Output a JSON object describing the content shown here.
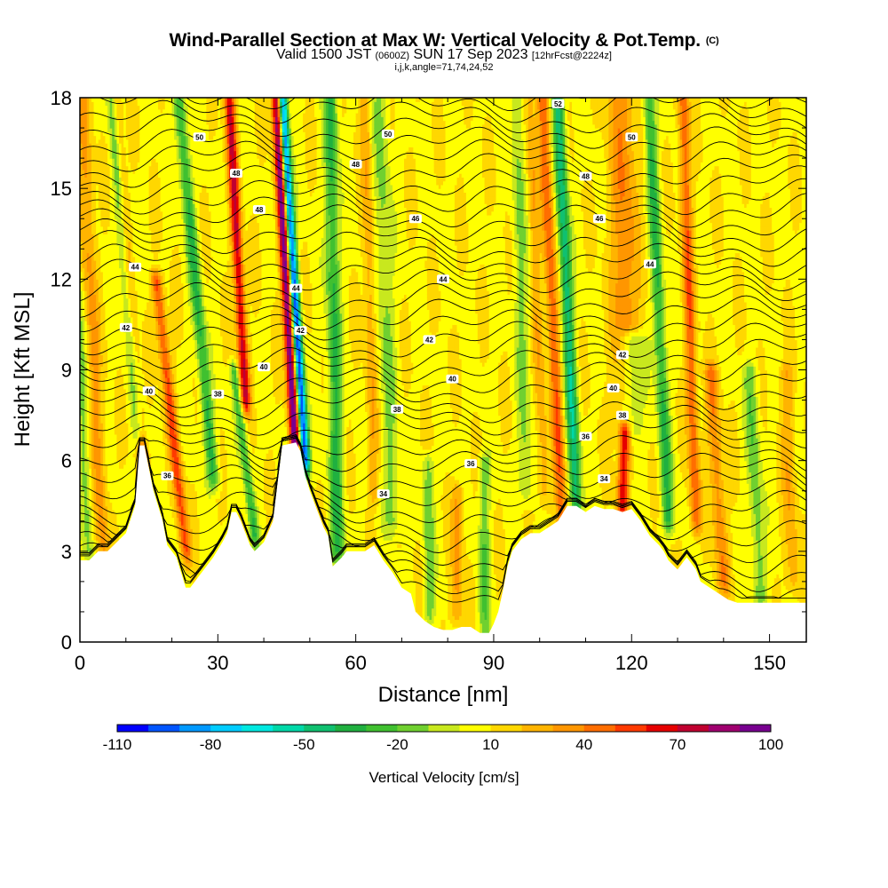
{
  "title": {
    "main": "Wind-Parallel Section at Max W: Vertical Velocity & Pot.Temp.",
    "copyright": "(C)",
    "valid_prefix": "Valid 1500 JST",
    "valid_utc": "(0600Z)",
    "valid_date": "SUN 17 Sep 2023",
    "forecast": "[12hrFcst@2224z]",
    "params": "i,j,k,angle=71,74,24,52"
  },
  "colors": {
    "background": "#ffffff",
    "terrain": "#ffffff",
    "contour": "#000000"
  },
  "chart_data": {
    "type": "heatmap",
    "xlabel": "Distance [nm]",
    "ylabel": "Height [Kft MSL]",
    "xlim": [
      0,
      158
    ],
    "ylim": [
      0,
      18
    ],
    "xticks": [
      0,
      30,
      60,
      90,
      120,
      150
    ],
    "yticks": [
      0,
      3,
      6,
      9,
      12,
      15,
      18
    ],
    "colorbar": {
      "title": "Vertical Velocity [cm/s]",
      "min": -110,
      "max": 100,
      "step": 10,
      "labels": [
        -110,
        -80,
        -50,
        -20,
        10,
        40,
        70,
        100
      ],
      "colors": [
        "#0000ff",
        "#0055ff",
        "#0099ff",
        "#00ccff",
        "#00e8e0",
        "#00d8a8",
        "#10c070",
        "#20b040",
        "#40c030",
        "#70d030",
        "#c8e81e",
        "#ffff00",
        "#ffd700",
        "#ffb400",
        "#ff9600",
        "#ff6e00",
        "#ff3a00",
        "#e60000",
        "#c00030",
        "#a00070",
        "#780090"
      ]
    },
    "terrain_profile": [
      [
        0,
        2.7
      ],
      [
        2,
        2.7
      ],
      [
        4,
        3.0
      ],
      [
        6,
        3.0
      ],
      [
        8,
        3.3
      ],
      [
        10,
        3.6
      ],
      [
        12,
        4.5
      ],
      [
        13,
        6.5
      ],
      [
        14,
        6.5
      ],
      [
        16,
        5.0
      ],
      [
        18,
        4.0
      ],
      [
        19,
        3.2
      ],
      [
        21,
        2.8
      ],
      [
        22,
        2.3
      ],
      [
        23,
        1.8
      ],
      [
        24,
        1.8
      ],
      [
        25,
        2.0
      ],
      [
        27,
        2.4
      ],
      [
        29,
        2.8
      ],
      [
        31,
        3.3
      ],
      [
        32,
        3.6
      ],
      [
        33,
        4.3
      ],
      [
        34,
        4.3
      ],
      [
        35,
        4.0
      ],
      [
        37,
        3.2
      ],
      [
        38,
        3.0
      ],
      [
        40,
        3.3
      ],
      [
        42,
        4.0
      ],
      [
        44,
        6.5
      ],
      [
        47,
        6.6
      ],
      [
        48,
        6.3
      ],
      [
        49,
        5.5
      ],
      [
        50,
        5.0
      ],
      [
        52,
        4.2
      ],
      [
        53,
        3.8
      ],
      [
        54,
        3.5
      ],
      [
        55,
        2.5
      ],
      [
        57,
        2.8
      ],
      [
        58,
        3.0
      ],
      [
        60,
        3.0
      ],
      [
        62,
        3.0
      ],
      [
        64,
        3.2
      ],
      [
        66,
        2.7
      ],
      [
        68,
        2.3
      ],
      [
        70,
        1.8
      ],
      [
        72,
        1.6
      ],
      [
        73,
        1.0
      ],
      [
        75,
        0.7
      ],
      [
        77,
        0.5
      ],
      [
        79,
        0.4
      ],
      [
        81,
        0.4
      ],
      [
        83,
        0.5
      ],
      [
        85,
        0.5
      ],
      [
        87,
        0.3
      ],
      [
        89,
        0.3
      ],
      [
        90,
        0.6
      ],
      [
        91,
        1.0
      ],
      [
        92,
        1.7
      ],
      [
        93,
        2.5
      ],
      [
        94,
        3.0
      ],
      [
        96,
        3.4
      ],
      [
        98,
        3.6
      ],
      [
        100,
        3.6
      ],
      [
        102,
        3.8
      ],
      [
        104,
        4.0
      ],
      [
        106,
        4.5
      ],
      [
        108,
        4.5
      ],
      [
        110,
        4.3
      ],
      [
        112,
        4.5
      ],
      [
        114,
        4.4
      ],
      [
        116,
        4.4
      ],
      [
        118,
        4.3
      ],
      [
        120,
        4.4
      ],
      [
        122,
        4.0
      ],
      [
        124,
        3.5
      ],
      [
        126,
        3.2
      ],
      [
        127,
        3.0
      ],
      [
        128,
        2.7
      ],
      [
        130,
        2.4
      ],
      [
        132,
        2.8
      ],
      [
        134,
        2.4
      ],
      [
        135,
        2.0
      ],
      [
        137,
        1.8
      ],
      [
        139,
        1.6
      ],
      [
        141,
        1.4
      ],
      [
        143,
        1.3
      ],
      [
        146,
        1.3
      ],
      [
        150,
        1.3
      ],
      [
        154,
        1.3
      ],
      [
        158,
        1.3
      ]
    ],
    "contour_labels": [
      {
        "x": 26,
        "y": 16.7,
        "text": "50"
      },
      {
        "x": 34,
        "y": 15.5,
        "text": "48"
      },
      {
        "x": 39,
        "y": 14.3,
        "text": "48"
      },
      {
        "x": 12,
        "y": 12.4,
        "text": "44"
      },
      {
        "x": 47,
        "y": 11.7,
        "text": "44"
      },
      {
        "x": 10,
        "y": 10.4,
        "text": "42"
      },
      {
        "x": 48,
        "y": 10.3,
        "text": "42"
      },
      {
        "x": 40,
        "y": 9.1,
        "text": "40"
      },
      {
        "x": 15,
        "y": 8.3,
        "text": "40"
      },
      {
        "x": 30,
        "y": 8.2,
        "text": "38"
      },
      {
        "x": 19,
        "y": 5.5,
        "text": "36"
      },
      {
        "x": 67,
        "y": 16.8,
        "text": "50"
      },
      {
        "x": 60,
        "y": 15.8,
        "text": "48"
      },
      {
        "x": 73,
        "y": 14.0,
        "text": "46"
      },
      {
        "x": 79,
        "y": 12.0,
        "text": "44"
      },
      {
        "x": 76,
        "y": 10.0,
        "text": "42"
      },
      {
        "x": 81,
        "y": 8.7,
        "text": "40"
      },
      {
        "x": 69,
        "y": 7.7,
        "text": "38"
      },
      {
        "x": 85,
        "y": 5.9,
        "text": "36"
      },
      {
        "x": 66,
        "y": 4.9,
        "text": "34"
      },
      {
        "x": 104,
        "y": 17.8,
        "text": "52"
      },
      {
        "x": 120,
        "y": 16.7,
        "text": "50"
      },
      {
        "x": 110,
        "y": 15.4,
        "text": "48"
      },
      {
        "x": 113,
        "y": 14.0,
        "text": "46"
      },
      {
        "x": 124,
        "y": 12.5,
        "text": "44"
      },
      {
        "x": 118,
        "y": 9.5,
        "text": "42"
      },
      {
        "x": 116,
        "y": 8.4,
        "text": "40"
      },
      {
        "x": 118,
        "y": 7.5,
        "text": "38"
      },
      {
        "x": 110,
        "y": 6.8,
        "text": "36"
      },
      {
        "x": 114,
        "y": 5.4,
        "text": "34"
      }
    ]
  }
}
